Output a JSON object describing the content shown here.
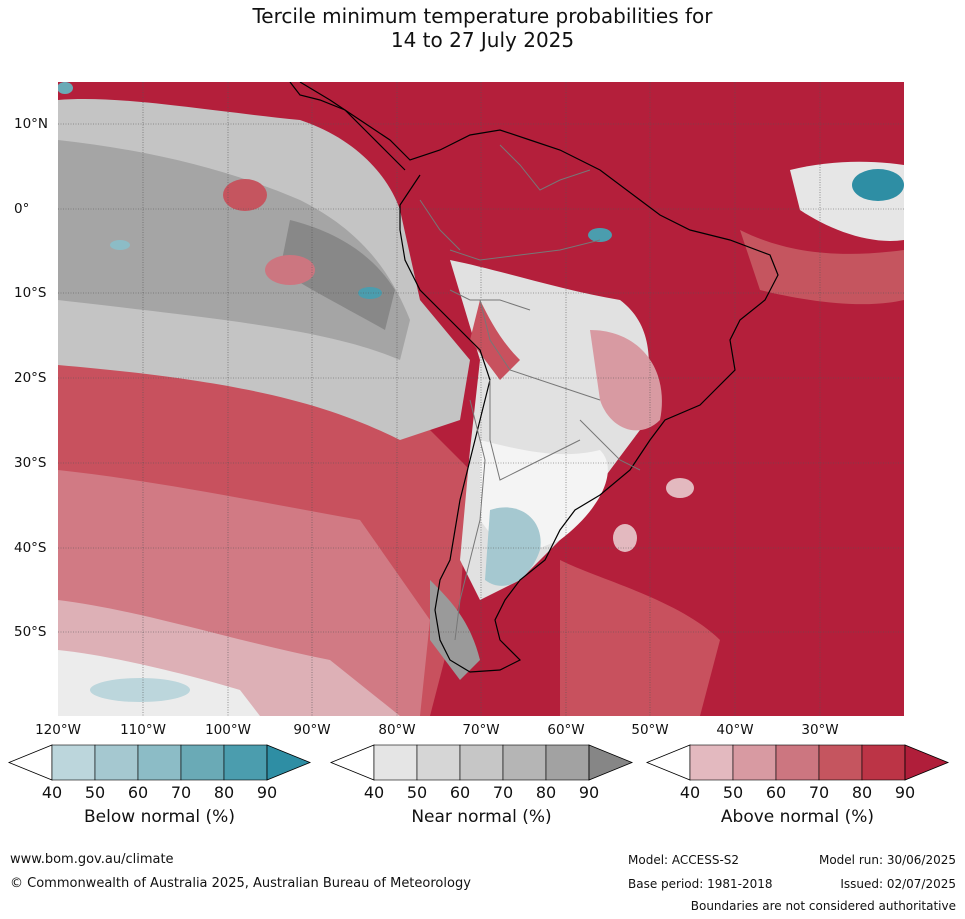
{
  "title": {
    "line1": "Tercile minimum temperature probabilities for",
    "line2": "14 to 27 July 2025"
  },
  "axes": {
    "lon_labels": [
      "120°W",
      "110°W",
      "100°W",
      "90°W",
      "80°W",
      "70°W",
      "60°W",
      "50°W",
      "40°W",
      "30°W"
    ],
    "lat_labels": [
      "10°N",
      "0°",
      "10°S",
      "20°S",
      "30°S",
      "40°S",
      "50°S"
    ]
  },
  "colorbars": [
    {
      "name": "below",
      "title": "Below normal (%)",
      "ticks": [
        "40",
        "50",
        "60",
        "70",
        "80",
        "90"
      ],
      "colors": [
        "#ffffff",
        "#bcd6dc",
        "#a5c8d0",
        "#8cbcc6",
        "#6aaab6",
        "#4b9dae",
        "#2e8ea4"
      ]
    },
    {
      "name": "near",
      "title": "Near normal (%)",
      "ticks": [
        "40",
        "50",
        "60",
        "70",
        "80",
        "90"
      ],
      "colors": [
        "#ffffff",
        "#e5e5e5",
        "#d6d6d6",
        "#c6c6c6",
        "#b5b5b5",
        "#a2a2a2",
        "#868686"
      ]
    },
    {
      "name": "above",
      "title": "Above normal (%)",
      "ticks": [
        "40",
        "50",
        "60",
        "70",
        "80",
        "90"
      ],
      "colors": [
        "#ffffff",
        "#e3b9bf",
        "#d89aa2",
        "#cc7680",
        "#c5555f",
        "#bc3446",
        "#b01e3a"
      ]
    }
  ],
  "footer": {
    "website": "www.bom.gov.au/climate",
    "copyright": "© Commonwealth of Australia 2025, Australian Bureau of Meteorology",
    "model": "Model: ACCESS-S2",
    "base_period": "Base period: 1981-2018",
    "model_run": "Model run: 30/06/2025",
    "issued": "Issued: 02/07/2025",
    "disclaimer": "Boundaries are not considered authoritative"
  }
}
